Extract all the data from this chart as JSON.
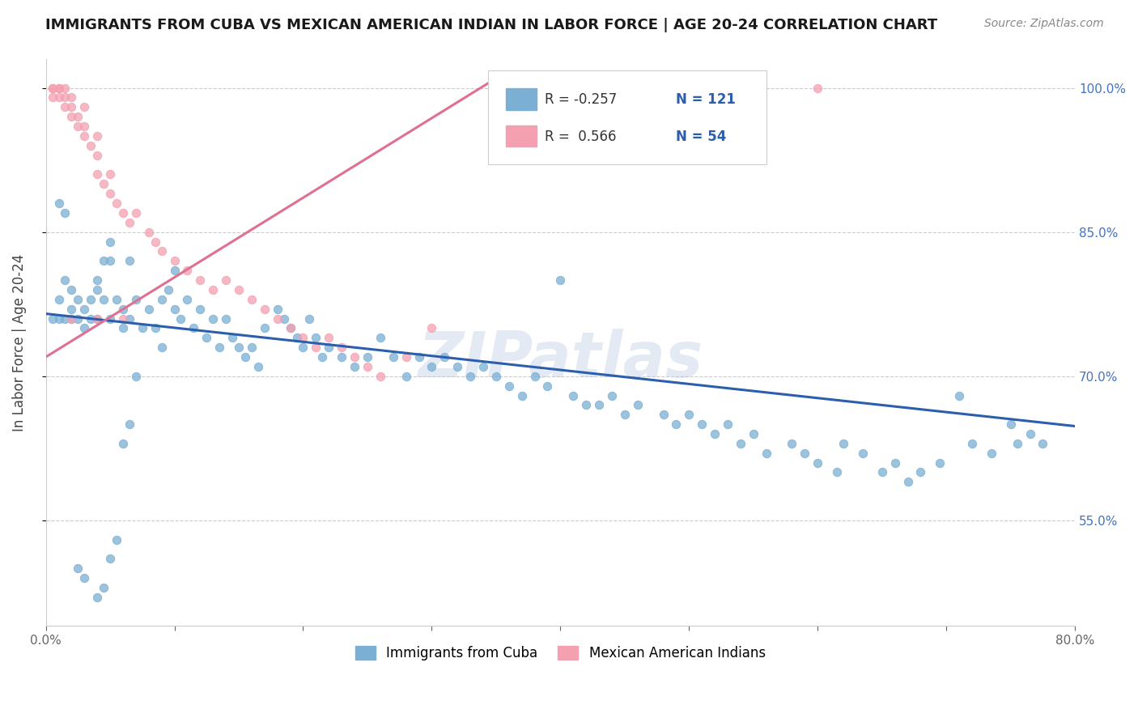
{
  "title": "IMMIGRANTS FROM CUBA VS MEXICAN AMERICAN INDIAN IN LABOR FORCE | AGE 20-24 CORRELATION CHART",
  "source": "Source: ZipAtlas.com",
  "ylabel": "In Labor Force | Age 20-24",
  "xlim": [
    0.0,
    0.8
  ],
  "ylim": [
    0.44,
    1.03
  ],
  "xticks": [
    0.0,
    0.1,
    0.2,
    0.3,
    0.4,
    0.5,
    0.6,
    0.7,
    0.8
  ],
  "xticklabels": [
    "0.0%",
    "",
    "",
    "",
    "",
    "",
    "",
    "",
    "80.0%"
  ],
  "yticks": [
    0.55,
    0.7,
    0.85,
    1.0
  ],
  "yticklabels": [
    "55.0%",
    "70.0%",
    "85.0%",
    "100.0%"
  ],
  "right_ytick_color": "#4472c4",
  "legend_R_blue": "-0.257",
  "legend_N_blue": "121",
  "legend_R_pink": "0.566",
  "legend_N_pink": "54",
  "blue_color": "#7bafd4",
  "pink_color": "#f4a0b0",
  "blue_line_color": "#2b5fad",
  "pink_line_color": "#e07090",
  "watermark": "ZIPatlas",
  "blue_line_x0": 0.0,
  "blue_line_y0": 0.765,
  "blue_line_x1": 0.8,
  "blue_line_y1": 0.648,
  "pink_line_x0": 0.0,
  "pink_line_y0": 0.72,
  "pink_line_x1": 0.35,
  "pink_line_y1": 1.01,
  "blue_scatter_x": [
    0.005,
    0.01,
    0.01,
    0.015,
    0.015,
    0.02,
    0.02,
    0.02,
    0.025,
    0.025,
    0.03,
    0.03,
    0.035,
    0.035,
    0.04,
    0.04,
    0.04,
    0.045,
    0.045,
    0.05,
    0.05,
    0.05,
    0.055,
    0.06,
    0.06,
    0.065,
    0.065,
    0.07,
    0.075,
    0.08,
    0.085,
    0.09,
    0.09,
    0.095,
    0.1,
    0.1,
    0.105,
    0.11,
    0.115,
    0.12,
    0.125,
    0.13,
    0.135,
    0.14,
    0.145,
    0.15,
    0.155,
    0.16,
    0.165,
    0.17,
    0.18,
    0.185,
    0.19,
    0.195,
    0.2,
    0.205,
    0.21,
    0.215,
    0.22,
    0.23,
    0.24,
    0.25,
    0.26,
    0.27,
    0.28,
    0.29,
    0.3,
    0.31,
    0.32,
    0.33,
    0.34,
    0.35,
    0.36,
    0.37,
    0.38,
    0.39,
    0.4,
    0.41,
    0.42,
    0.43,
    0.44,
    0.45,
    0.46,
    0.48,
    0.49,
    0.5,
    0.51,
    0.52,
    0.53,
    0.54,
    0.55,
    0.56,
    0.58,
    0.59,
    0.6,
    0.615,
    0.62,
    0.635,
    0.65,
    0.66,
    0.67,
    0.68,
    0.695,
    0.71,
    0.72,
    0.735,
    0.75,
    0.755,
    0.765,
    0.775,
    0.01,
    0.015,
    0.025,
    0.03,
    0.04,
    0.045,
    0.05,
    0.055,
    0.06,
    0.065,
    0.07
  ],
  "blue_scatter_y": [
    0.76,
    0.76,
    0.78,
    0.8,
    0.76,
    0.77,
    0.79,
    0.76,
    0.78,
    0.76,
    0.77,
    0.75,
    0.78,
    0.76,
    0.8,
    0.79,
    0.76,
    0.82,
    0.78,
    0.84,
    0.82,
    0.76,
    0.78,
    0.77,
    0.75,
    0.82,
    0.76,
    0.78,
    0.75,
    0.77,
    0.75,
    0.78,
    0.73,
    0.79,
    0.81,
    0.77,
    0.76,
    0.78,
    0.75,
    0.77,
    0.74,
    0.76,
    0.73,
    0.76,
    0.74,
    0.73,
    0.72,
    0.73,
    0.71,
    0.75,
    0.77,
    0.76,
    0.75,
    0.74,
    0.73,
    0.76,
    0.74,
    0.72,
    0.73,
    0.72,
    0.71,
    0.72,
    0.74,
    0.72,
    0.7,
    0.72,
    0.71,
    0.72,
    0.71,
    0.7,
    0.71,
    0.7,
    0.69,
    0.68,
    0.7,
    0.69,
    0.8,
    0.68,
    0.67,
    0.67,
    0.68,
    0.66,
    0.67,
    0.66,
    0.65,
    0.66,
    0.65,
    0.64,
    0.65,
    0.63,
    0.64,
    0.62,
    0.63,
    0.62,
    0.61,
    0.6,
    0.63,
    0.62,
    0.6,
    0.61,
    0.59,
    0.6,
    0.61,
    0.68,
    0.63,
    0.62,
    0.65,
    0.63,
    0.64,
    0.63,
    0.88,
    0.87,
    0.5,
    0.49,
    0.47,
    0.48,
    0.51,
    0.53,
    0.63,
    0.65,
    0.7
  ],
  "pink_scatter_x": [
    0.005,
    0.005,
    0.005,
    0.01,
    0.01,
    0.01,
    0.015,
    0.015,
    0.015,
    0.02,
    0.02,
    0.02,
    0.025,
    0.025,
    0.03,
    0.03,
    0.03,
    0.035,
    0.04,
    0.04,
    0.04,
    0.045,
    0.05,
    0.05,
    0.055,
    0.06,
    0.065,
    0.07,
    0.08,
    0.085,
    0.09,
    0.1,
    0.11,
    0.12,
    0.13,
    0.14,
    0.15,
    0.16,
    0.17,
    0.18,
    0.19,
    0.2,
    0.21,
    0.22,
    0.23,
    0.24,
    0.25,
    0.26,
    0.28,
    0.3,
    0.02,
    0.04,
    0.06,
    0.6
  ],
  "pink_scatter_y": [
    1.0,
    1.0,
    0.99,
    1.0,
    1.0,
    0.99,
    1.0,
    0.99,
    0.98,
    0.99,
    0.98,
    0.97,
    0.97,
    0.96,
    0.98,
    0.96,
    0.95,
    0.94,
    0.95,
    0.93,
    0.91,
    0.9,
    0.91,
    0.89,
    0.88,
    0.87,
    0.86,
    0.87,
    0.85,
    0.84,
    0.83,
    0.82,
    0.81,
    0.8,
    0.79,
    0.8,
    0.79,
    0.78,
    0.77,
    0.76,
    0.75,
    0.74,
    0.73,
    0.74,
    0.73,
    0.72,
    0.71,
    0.7,
    0.72,
    0.75,
    0.76,
    0.76,
    0.76,
    1.0
  ]
}
